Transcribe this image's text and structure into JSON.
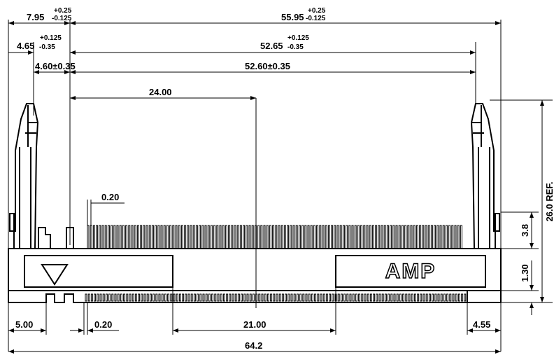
{
  "dimensions": {
    "d7_95": {
      "value": "7.95",
      "plus": "+0.25",
      "minus": "-0.125"
    },
    "d55_95": {
      "value": "55.95",
      "plus": "+0.25",
      "minus": "-0.125"
    },
    "d4_65": {
      "value": "4.65",
      "plus": "+0.125",
      "minus": "-0.35"
    },
    "d52_65": {
      "value": "52.65",
      "plus": "+0.125",
      "minus": "-0.35"
    },
    "d4_60": "4.60±0.35",
    "d52_60": "52.60±0.35",
    "d24_00": "24.00",
    "pin_width_top": "0.20",
    "ref_height": "26.0 REF.",
    "d3_8": "3.8",
    "d1_30": "1.30",
    "d5_00": "5.00",
    "pin_width_bottom": "0.20",
    "d21_00": "21.00",
    "d4_55": "4.55",
    "overall": "64.2"
  },
  "logo": "AMP"
}
